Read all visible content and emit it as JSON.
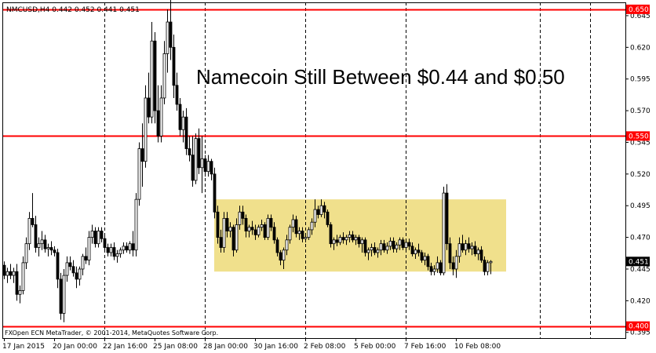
{
  "header": {
    "symbol_line": "NMCUSD,H4  0.442 0.452 0.441 0.451"
  },
  "footer": {
    "copyright": "FXOpen ECN MetaTrader, © 2001-2014, MetaQuotes Software Corp."
  },
  "colors": {
    "candle": "#000000",
    "level_line": "#ff0000",
    "level_label_bg": "#ff0000",
    "range_box": "#f0e08c",
    "current_price_bg": "#000000",
    "grid": "#000000"
  },
  "chart_data": {
    "type": "candlestick",
    "title": "Namecoin Still Between $0.44 and $0.50",
    "timeframe": "H4",
    "grid": true,
    "grid_style": "vertical-dashed",
    "y_axis_side": "right",
    "ylim": [
      0.3905,
      0.6555
    ],
    "y_ticks": [
      0.645,
      0.62,
      0.595,
      0.57,
      0.545,
      0.52,
      0.495,
      0.47,
      0.445,
      0.42,
      0.395
    ],
    "x_ticks": [
      "17 Jan 2015",
      "20 Jan 00:00",
      "22 Jan 16:00",
      "25 Jan 08:00",
      "28 Jan 00:00",
      "30 Jan 16:00",
      "2 Feb 08:00",
      "5 Feb 00:00",
      "7 Feb 16:00",
      "10 Feb 08:00"
    ],
    "vertical_grid_at": [
      2,
      4,
      6,
      8
    ],
    "candles_per_tick": 16,
    "horizontal_levels": [
      {
        "label": "0.650",
        "price": 0.65
      },
      {
        "label": "0.550",
        "price": 0.55
      },
      {
        "label": "0.400",
        "price": 0.4
      }
    ],
    "current_price": {
      "label": "0.451",
      "price": 0.451
    },
    "range_box": {
      "price_low": 0.443,
      "price_high": 0.5,
      "start_index": 67,
      "end_index": 160
    },
    "ohlc": [
      [
        0.448,
        0.451,
        0.437,
        0.44
      ],
      [
        0.44,
        0.446,
        0.434,
        0.443
      ],
      [
        0.443,
        0.449,
        0.437,
        0.44
      ],
      [
        0.44,
        0.446,
        0.434,
        0.443
      ],
      [
        0.443,
        0.449,
        0.42,
        0.425
      ],
      [
        0.425,
        0.432,
        0.418,
        0.428
      ],
      [
        0.428,
        0.455,
        0.425,
        0.45
      ],
      [
        0.45,
        0.47,
        0.445,
        0.465
      ],
      [
        0.465,
        0.49,
        0.46,
        0.485
      ],
      [
        0.485,
        0.505,
        0.478,
        0.48
      ],
      [
        0.48,
        0.487,
        0.458,
        0.462
      ],
      [
        0.462,
        0.47,
        0.455,
        0.465
      ],
      [
        0.465,
        0.475,
        0.46,
        0.468
      ],
      [
        0.468,
        0.472,
        0.458,
        0.461
      ],
      [
        0.461,
        0.465,
        0.455,
        0.462
      ],
      [
        0.462,
        0.467,
        0.456,
        0.46
      ],
      [
        0.46,
        0.463,
        0.455,
        0.458
      ],
      [
        0.458,
        0.461,
        0.43,
        0.437
      ],
      [
        0.437,
        0.442,
        0.405,
        0.41
      ],
      [
        0.41,
        0.445,
        0.403,
        0.44
      ],
      [
        0.44,
        0.455,
        0.435,
        0.45
      ],
      [
        0.45,
        0.455,
        0.444,
        0.447
      ],
      [
        0.447,
        0.452,
        0.439,
        0.442
      ],
      [
        0.442,
        0.447,
        0.43,
        0.437
      ],
      [
        0.437,
        0.447,
        0.432,
        0.445
      ],
      [
        0.445,
        0.457,
        0.44,
        0.455
      ],
      [
        0.455,
        0.462,
        0.449,
        0.452
      ],
      [
        0.452,
        0.475,
        0.448,
        0.47
      ],
      [
        0.47,
        0.48,
        0.465,
        0.475
      ],
      [
        0.475,
        0.478,
        0.462,
        0.465
      ],
      [
        0.465,
        0.478,
        0.462,
        0.475
      ],
      [
        0.475,
        0.478,
        0.466,
        0.469
      ],
      [
        0.469,
        0.471,
        0.458,
        0.462
      ],
      [
        0.462,
        0.465,
        0.455,
        0.458
      ],
      [
        0.458,
        0.465,
        0.455,
        0.462
      ],
      [
        0.462,
        0.466,
        0.452,
        0.455
      ],
      [
        0.455,
        0.46,
        0.45,
        0.457
      ],
      [
        0.457,
        0.462,
        0.454,
        0.46
      ],
      [
        0.46,
        0.466,
        0.457,
        0.463
      ],
      [
        0.463,
        0.466,
        0.458,
        0.46
      ],
      [
        0.46,
        0.467,
        0.457,
        0.465
      ],
      [
        0.465,
        0.475,
        0.455,
        0.46
      ],
      [
        0.46,
        0.505,
        0.455,
        0.5
      ],
      [
        0.5,
        0.545,
        0.495,
        0.54
      ],
      [
        0.54,
        0.56,
        0.51,
        0.53
      ],
      [
        0.53,
        0.59,
        0.525,
        0.58
      ],
      [
        0.58,
        0.6,
        0.56,
        0.565
      ],
      [
        0.565,
        0.64,
        0.56,
        0.625
      ],
      [
        0.625,
        0.632,
        0.56,
        0.57
      ],
      [
        0.57,
        0.59,
        0.545,
        0.55
      ],
      [
        0.55,
        0.59,
        0.545,
        0.58
      ],
      [
        0.58,
        0.625,
        0.575,
        0.615
      ],
      [
        0.615,
        0.65,
        0.6,
        0.64
      ],
      [
        0.64,
        0.66,
        0.61,
        0.62
      ],
      [
        0.62,
        0.63,
        0.58,
        0.59
      ],
      [
        0.59,
        0.6,
        0.57,
        0.575
      ],
      [
        0.575,
        0.58,
        0.55,
        0.555
      ],
      [
        0.555,
        0.57,
        0.545,
        0.565
      ],
      [
        0.565,
        0.572,
        0.535,
        0.54
      ],
      [
        0.54,
        0.55,
        0.53,
        0.535
      ],
      [
        0.535,
        0.55,
        0.51,
        0.515
      ],
      [
        0.515,
        0.552,
        0.512,
        0.548
      ],
      [
        0.548,
        0.556,
        0.52,
        0.525
      ],
      [
        0.525,
        0.55,
        0.505,
        0.532
      ],
      [
        0.532,
        0.535,
        0.518,
        0.522
      ],
      [
        0.522,
        0.535,
        0.518,
        0.53
      ],
      [
        0.53,
        0.532,
        0.515,
        0.52
      ],
      [
        0.52,
        0.525,
        0.485,
        0.49
      ],
      [
        0.49,
        0.495,
        0.465,
        0.47
      ],
      [
        0.47,
        0.476,
        0.458,
        0.462
      ],
      [
        0.462,
        0.49,
        0.458,
        0.485
      ],
      [
        0.485,
        0.49,
        0.47,
        0.475
      ],
      [
        0.475,
        0.482,
        0.47,
        0.478
      ],
      [
        0.478,
        0.48,
        0.455,
        0.46
      ],
      [
        0.46,
        0.485,
        0.458,
        0.48
      ],
      [
        0.48,
        0.495,
        0.476,
        0.49
      ],
      [
        0.49,
        0.495,
        0.48,
        0.485
      ],
      [
        0.485,
        0.488,
        0.47,
        0.475
      ],
      [
        0.475,
        0.48,
        0.47,
        0.478
      ],
      [
        0.478,
        0.483,
        0.472,
        0.476
      ],
      [
        0.476,
        0.48,
        0.468,
        0.472
      ],
      [
        0.472,
        0.48,
        0.47,
        0.478
      ],
      [
        0.478,
        0.484,
        0.475,
        0.48
      ],
      [
        0.48,
        0.482,
        0.468,
        0.47
      ],
      [
        0.47,
        0.488,
        0.468,
        0.485
      ],
      [
        0.485,
        0.488,
        0.475,
        0.478
      ],
      [
        0.478,
        0.482,
        0.465,
        0.468
      ],
      [
        0.468,
        0.47,
        0.455,
        0.458
      ],
      [
        0.458,
        0.46,
        0.448,
        0.452
      ],
      [
        0.452,
        0.462,
        0.445,
        0.46
      ],
      [
        0.46,
        0.472,
        0.456,
        0.468
      ],
      [
        0.468,
        0.48,
        0.465,
        0.478
      ],
      [
        0.478,
        0.488,
        0.474,
        0.484
      ],
      [
        0.484,
        0.487,
        0.47,
        0.473
      ],
      [
        0.473,
        0.478,
        0.468,
        0.475
      ],
      [
        0.475,
        0.478,
        0.466,
        0.469
      ],
      [
        0.469,
        0.472,
        0.466,
        0.47
      ],
      [
        0.47,
        0.478,
        0.468,
        0.476
      ],
      [
        0.476,
        0.485,
        0.472,
        0.482
      ],
      [
        0.482,
        0.5,
        0.478,
        0.492
      ],
      [
        0.492,
        0.495,
        0.485,
        0.488
      ],
      [
        0.488,
        0.5,
        0.486,
        0.495
      ],
      [
        0.495,
        0.498,
        0.485,
        0.49
      ],
      [
        0.49,
        0.492,
        0.478,
        0.48
      ],
      [
        0.48,
        0.482,
        0.462,
        0.465
      ],
      [
        0.465,
        0.47,
        0.46,
        0.468
      ],
      [
        0.468,
        0.472,
        0.463,
        0.466
      ],
      [
        0.466,
        0.472,
        0.464,
        0.47
      ],
      [
        0.47,
        0.474,
        0.465,
        0.468
      ],
      [
        0.468,
        0.472,
        0.464,
        0.47
      ],
      [
        0.47,
        0.475,
        0.466,
        0.472
      ],
      [
        0.472,
        0.475,
        0.466,
        0.468
      ],
      [
        0.468,
        0.472,
        0.464,
        0.47
      ],
      [
        0.47,
        0.472,
        0.462,
        0.465
      ],
      [
        0.465,
        0.47,
        0.458,
        0.468
      ],
      [
        0.468,
        0.47,
        0.455,
        0.458
      ],
      [
        0.458,
        0.462,
        0.452,
        0.46
      ],
      [
        0.46,
        0.465,
        0.455,
        0.462
      ],
      [
        0.462,
        0.466,
        0.456,
        0.458
      ],
      [
        0.458,
        0.462,
        0.454,
        0.46
      ],
      [
        0.46,
        0.468,
        0.456,
        0.465
      ],
      [
        0.465,
        0.468,
        0.458,
        0.46
      ],
      [
        0.46,
        0.466,
        0.457,
        0.463
      ],
      [
        0.463,
        0.47,
        0.46,
        0.467
      ],
      [
        0.467,
        0.47,
        0.458,
        0.461
      ],
      [
        0.461,
        0.466,
        0.458,
        0.464
      ],
      [
        0.464,
        0.47,
        0.46,
        0.468
      ],
      [
        0.468,
        0.47,
        0.46,
        0.462
      ],
      [
        0.462,
        0.468,
        0.459,
        0.466
      ],
      [
        0.466,
        0.469,
        0.46,
        0.463
      ],
      [
        0.463,
        0.466,
        0.455,
        0.457
      ],
      [
        0.457,
        0.462,
        0.453,
        0.46
      ],
      [
        0.46,
        0.465,
        0.455,
        0.458
      ],
      [
        0.458,
        0.46,
        0.45,
        0.452
      ],
      [
        0.452,
        0.458,
        0.448,
        0.455
      ],
      [
        0.455,
        0.457,
        0.444,
        0.447
      ],
      [
        0.447,
        0.45,
        0.44,
        0.443
      ],
      [
        0.443,
        0.448,
        0.44,
        0.445
      ],
      [
        0.445,
        0.455,
        0.442,
        0.45
      ],
      [
        0.45,
        0.452,
        0.44,
        0.442
      ],
      [
        0.442,
        0.51,
        0.44,
        0.505
      ],
      [
        0.505,
        0.512,
        0.46,
        0.465
      ],
      [
        0.465,
        0.47,
        0.445,
        0.45
      ],
      [
        0.45,
        0.455,
        0.44,
        0.445
      ],
      [
        0.445,
        0.46,
        0.438,
        0.455
      ],
      [
        0.455,
        0.47,
        0.45,
        0.465
      ],
      [
        0.465,
        0.472,
        0.458,
        0.46
      ],
      [
        0.46,
        0.468,
        0.456,
        0.465
      ],
      [
        0.465,
        0.47,
        0.458,
        0.461
      ],
      [
        0.461,
        0.466,
        0.456,
        0.463
      ],
      [
        0.463,
        0.467,
        0.455,
        0.457
      ],
      [
        0.457,
        0.462,
        0.452,
        0.46
      ],
      [
        0.46,
        0.463,
        0.45,
        0.452
      ],
      [
        0.452,
        0.455,
        0.44,
        0.443
      ],
      [
        0.443,
        0.452,
        0.44,
        0.45
      ],
      [
        0.45,
        0.452,
        0.441,
        0.451
      ]
    ]
  }
}
